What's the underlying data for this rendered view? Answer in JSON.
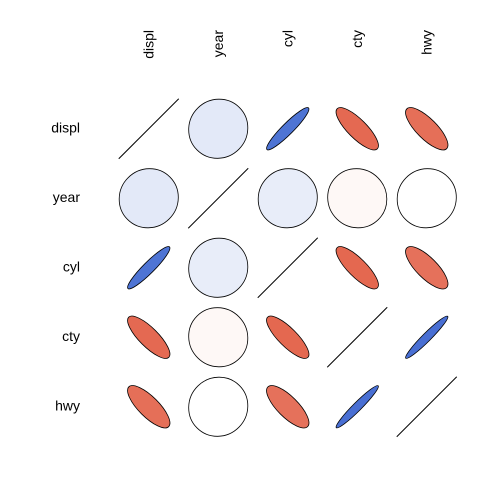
{
  "chart_data": {
    "type": "heatmap",
    "variables": [
      "displ",
      "year",
      "cyl",
      "cty",
      "hwy"
    ],
    "matrix": [
      [
        1.0,
        0.15,
        0.93,
        -0.8,
        -0.77
      ],
      [
        0.15,
        1.0,
        0.12,
        -0.04,
        0.0
      ],
      [
        0.93,
        0.12,
        1.0,
        -0.81,
        -0.76
      ],
      [
        -0.8,
        -0.04,
        -0.81,
        1.0,
        0.96
      ],
      [
        -0.77,
        0.0,
        -0.76,
        0.96,
        1.0
      ]
    ],
    "colors": {
      "positive": "#4169d1",
      "negative": "#df4d31",
      "neutral": "#ffffff",
      "outline": "#000000"
    }
  }
}
